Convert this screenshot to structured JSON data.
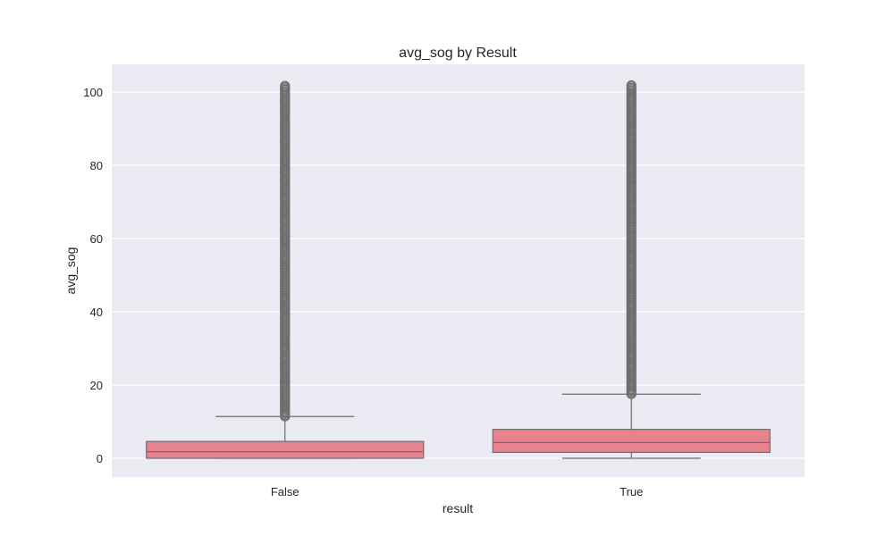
{
  "chart_data": {
    "type": "box",
    "title": "avg_sog by Result",
    "xlabel": "result",
    "ylabel": "avg_sog",
    "categories": [
      "False",
      "True"
    ],
    "ylim": [
      -5,
      105
    ],
    "yticks": [
      0,
      20,
      40,
      60,
      80,
      100
    ],
    "grid": true,
    "box_color": "#e8828f",
    "edge_color": "#6e6e6e",
    "background_color": "#eaeaf2",
    "boxes": [
      {
        "category": "False",
        "whisker_low": 0,
        "q1": 0,
        "median": 1.8,
        "q3": 4.6,
        "whisker_high": 11.4,
        "outlier_range": [
          11.4,
          102
        ]
      },
      {
        "category": "True",
        "whisker_low": 0,
        "q1": 1.6,
        "median": 4.3,
        "q3": 7.9,
        "whisker_high": 17.5,
        "outlier_range": [
          17.5,
          102
        ]
      }
    ]
  }
}
